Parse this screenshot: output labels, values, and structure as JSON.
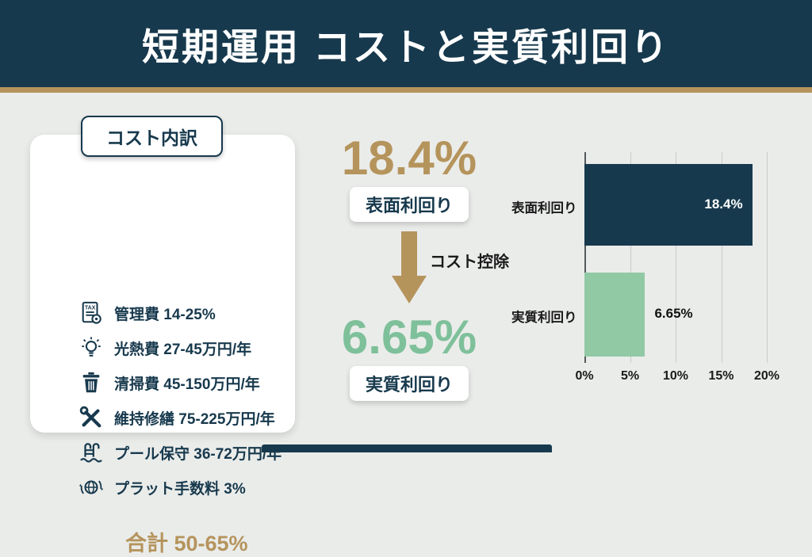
{
  "colors": {
    "navy": "#17394d",
    "gold": "#b5945c",
    "green_text": "#7ec09a",
    "green_bar": "#92c9a5",
    "background": "#eaecea"
  },
  "header": {
    "title": "短期運用 コストと実質利回り"
  },
  "cost_panel": {
    "title": "コスト内訳",
    "items": [
      {
        "icon": "tax-document-icon",
        "label": "管理費 14-25%"
      },
      {
        "icon": "lightbulb-icon",
        "label": "光熱費 27-45万円/年"
      },
      {
        "icon": "trash-icon",
        "label": "清掃費 45-150万円/年"
      },
      {
        "icon": "tools-icon",
        "label": "維持修繕 75-225万円/年"
      },
      {
        "icon": "pool-ladder-icon",
        "label": "プール保守 36-72万円/年"
      },
      {
        "icon": "globe-icon",
        "label": "プラット手数料 3%"
      }
    ],
    "total": "合計 50-65%"
  },
  "yield_flow": {
    "gross_value": "18.4%",
    "gross_label": "表面利回り",
    "deduction_label": "コスト控除",
    "net_value": "6.65%",
    "net_label": "実質利回り"
  },
  "chart_data": {
    "type": "bar",
    "orientation": "horizontal",
    "categories": [
      "表面利回り",
      "実質利回り"
    ],
    "values": [
      18.4,
      6.65
    ],
    "value_labels": [
      "18.4%",
      "6.65%"
    ],
    "bar_colors": [
      "#17394d",
      "#92c9a5"
    ],
    "xlim": [
      0,
      20
    ],
    "x_ticks": [
      "0%",
      "5%",
      "10%",
      "15%",
      "20%"
    ],
    "grid": true,
    "legend": "none",
    "title": ""
  }
}
